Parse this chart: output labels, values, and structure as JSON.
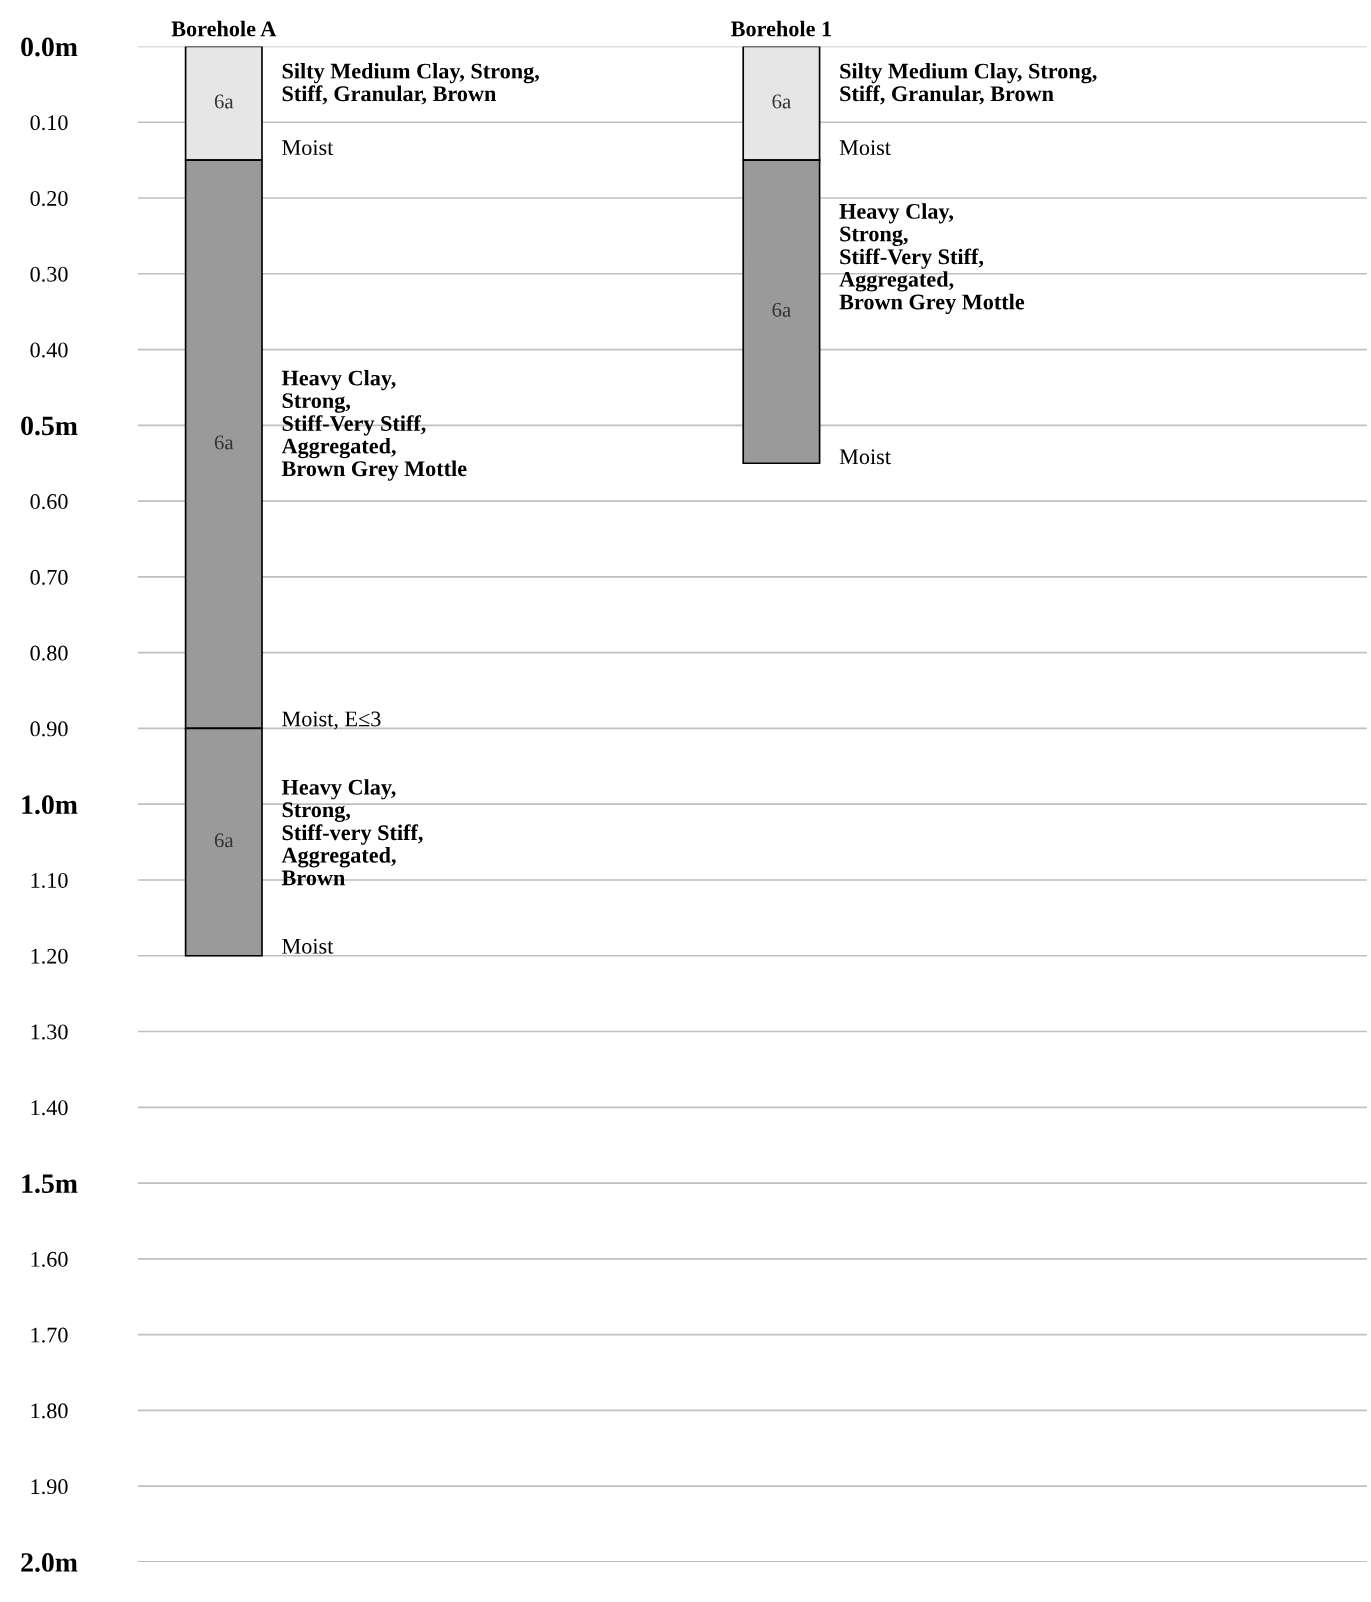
{
  "chart_data": {
    "type": "bar",
    "stacked": true,
    "categories": [
      "Borehole A",
      "Borehole 1"
    ],
    "series": [
      {
        "name": "6a",
        "color": "#e6e6e6",
        "values": [
          0.15,
          0.15
        ]
      },
      {
        "name": "6a",
        "color": "#9a9a9a",
        "values": [
          0.75,
          0.4
        ]
      },
      {
        "name": "6a",
        "color": "#9a9a9a",
        "values": [
          0.3,
          null
        ]
      }
    ],
    "ylim": [
      2.0,
      0.0
    ],
    "yticks": [
      {
        "value": 0.0,
        "label": "0.0m"
      },
      {
        "value": 0.1,
        "label": "0.10"
      },
      {
        "value": 0.2,
        "label": "0.20"
      },
      {
        "value": 0.3,
        "label": "0.30"
      },
      {
        "value": 0.4,
        "label": "0.40"
      },
      {
        "value": 0.5,
        "label": "0.5m"
      },
      {
        "value": 0.6,
        "label": "0.60"
      },
      {
        "value": 0.7,
        "label": "0.70"
      },
      {
        "value": 0.8,
        "label": "0.80"
      },
      {
        "value": 0.9,
        "label": "0.90"
      },
      {
        "value": 1.0,
        "label": "1.0m"
      },
      {
        "value": 1.1,
        "label": "1.10"
      },
      {
        "value": 1.2,
        "label": "1.20"
      },
      {
        "value": 1.3,
        "label": "1.30"
      },
      {
        "value": 1.4,
        "label": "1.40"
      },
      {
        "value": 1.5,
        "label": "1.5m"
      },
      {
        "value": 1.6,
        "label": "1.60"
      },
      {
        "value": 1.7,
        "label": "1.70"
      },
      {
        "value": 1.8,
        "label": "1.80"
      },
      {
        "value": 1.9,
        "label": "1.90"
      },
      {
        "value": 2.0,
        "label": "2.0m"
      }
    ],
    "grid": "y",
    "annotations": [
      "Silty Medium Clay, Strong,\nStiff, Granular, Brown",
      "Moist",
      "Heavy Clay,\nStrong,\nStiff-Very Stiff,\nAggregated,\nBrown Grey Mottle",
      "Moist, E≤3",
      "Heavy Clay,\nStrong,\nStiff-very Stiff,\nAggregated,\nBrown",
      "Moist",
      "Silty Medium Clay, Strong,\nStiff, Granular, Brown",
      "Moist",
      "Heavy Clay,\nStrong,\nStiff-Very Stiff,\nAggregated,\nBrown Grey Mottle",
      "Moist"
    ]
  }
}
